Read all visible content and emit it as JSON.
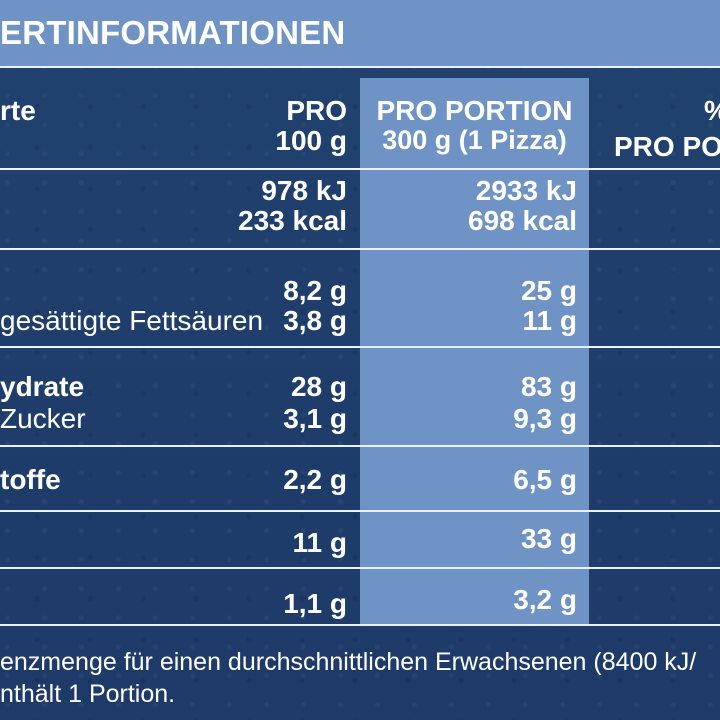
{
  "header": {
    "title": "ERTINFORMATIONEN"
  },
  "columns": {
    "label_fragment": "rte",
    "per100": [
      "PRO",
      "100 g"
    ],
    "portion": [
      "PRO PORTION",
      "300  g (1 Pizza)"
    ],
    "percent": [
      "%",
      "PRO POR"
    ]
  },
  "rows": {
    "energy": {
      "v100": [
        "978 kJ",
        "233 kcal"
      ],
      "vportion": [
        "2933 kJ",
        "698 kcal"
      ]
    },
    "fat": {
      "sublabel": "gesättigte Fettsäuren",
      "v100": [
        "8,2 g",
        "3,8 g"
      ],
      "vportion": [
        "25 g",
        "11 g"
      ]
    },
    "carbs": {
      "label": "ydrate",
      "sublabel": "Zucker",
      "v100": [
        "28 g",
        "3,1 g"
      ],
      "vportion": [
        "83 g",
        "9,3 g"
      ]
    },
    "fiber": {
      "label": "toffe",
      "v100": "2,2 g",
      "vportion": "6,5 g"
    },
    "protein": {
      "v100": "11 g",
      "vportion": "33 g"
    },
    "salt": {
      "v100": "1,1 g",
      "vportion": "3,2 g"
    }
  },
  "footnote": {
    "line1": "enzmenge für einen durchschnittlichen Erwachsenen (8400 kJ/",
    "line2": "nthält 1 Portion."
  },
  "colors": {
    "background": "#1f3f70",
    "highlight": "#6f93c4",
    "rule": "#eaf1ff",
    "text": "#ffffff"
  }
}
